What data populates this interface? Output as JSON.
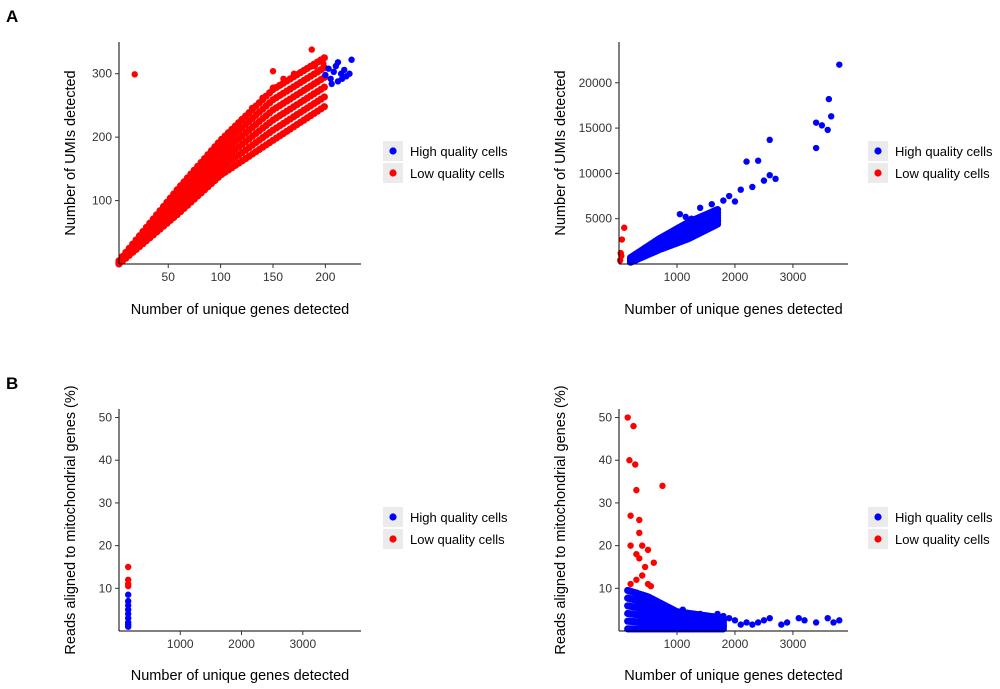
{
  "panel_labels": [
    "A",
    "B"
  ],
  "legend": {
    "items": [
      {
        "label": "High quality cells",
        "color": "#0000ff"
      },
      {
        "label": "Low quality cells",
        "color": "#ff0000"
      }
    ]
  },
  "chart_data": [
    {
      "panel": "A",
      "type": "scatter",
      "xlabel": "Number of unique genes detected",
      "ylabel": "Number of UMIs detected",
      "xlim": [
        3,
        234
      ],
      "ylim": [
        0,
        350
      ],
      "xticks": [
        50,
        100,
        150,
        200
      ],
      "yticks": [
        100,
        200,
        300
      ],
      "grid": false,
      "legend_position": "right",
      "series": [
        {
          "name": "High quality cells",
          "color": "#0000ff",
          "points": [
            [
              200,
              298
            ],
            [
              203,
              308
            ],
            [
              205,
              292
            ],
            [
              208,
              303
            ],
            [
              210,
              312
            ],
            [
              212,
              288
            ],
            [
              215,
              300
            ],
            [
              218,
              306
            ],
            [
              220,
              296
            ],
            [
              223,
              300
            ],
            [
              225,
              322
            ],
            [
              212,
              318
            ],
            [
              206,
              284
            ],
            [
              216,
              292
            ]
          ]
        },
        {
          "name": "Low quality cells",
          "color": "#ff0000",
          "points": [
            [
              18,
              299
            ],
            [
              187,
              338
            ],
            [
              150,
              304
            ],
            [
              5,
              5
            ],
            [
              10,
              12
            ],
            [
              20,
              28
            ],
            [
              30,
              45
            ],
            [
              40,
              65
            ],
            [
              50,
              86
            ],
            [
              60,
              108
            ],
            [
              70,
              128
            ],
            [
              80,
              150
            ],
            [
              90,
              172
            ],
            [
              100,
              190
            ],
            [
              110,
              210
            ],
            [
              120,
              228
            ],
            [
              130,
              246
            ],
            [
              140,
              262
            ],
            [
              150,
              278
            ],
            [
              160,
              292
            ],
            [
              170,
              300
            ],
            [
              180,
              306
            ],
            [
              190,
              312
            ],
            [
              198,
              316
            ]
          ]
        }
      ],
      "band": {
        "color": "#ff0000",
        "x": [
          3,
          199
        ],
        "y_low": [
          [
            3,
            0
          ],
          [
            60,
            80
          ],
          [
            100,
            140
          ],
          [
            150,
            195
          ],
          [
            199,
            248
          ]
        ],
        "y_high": [
          [
            3,
            5
          ],
          [
            60,
            120
          ],
          [
            100,
            195
          ],
          [
            150,
            275
          ],
          [
            199,
            325
          ]
        ]
      }
    },
    {
      "panel": "A",
      "type": "scatter",
      "xlabel": "Number of unique genes detected",
      "ylabel": "Number of UMIs detected",
      "xlim": [
        0,
        3950
      ],
      "ylim": [
        0,
        24500
      ],
      "xticks": [
        1000,
        2000,
        3000
      ],
      "yticks": [
        5000,
        10000,
        15000,
        20000
      ],
      "grid": false,
      "legend_position": "right",
      "series": [
        {
          "name": "High quality cells",
          "color": "#0000ff",
          "points": [
            [
              3800,
              22000
            ],
            [
              3620,
              18200
            ],
            [
              3400,
              15600
            ],
            [
              3500,
              15300
            ],
            [
              3600,
              14800
            ],
            [
              3660,
              16300
            ],
            [
              3400,
              12800
            ],
            [
              2600,
              13700
            ],
            [
              2200,
              11300
            ],
            [
              2400,
              11400
            ],
            [
              2600,
              9800
            ],
            [
              2500,
              9200
            ],
            [
              2700,
              9400
            ],
            [
              2300,
              8500
            ],
            [
              2100,
              8200
            ],
            [
              1800,
              7000
            ],
            [
              1600,
              6600
            ],
            [
              1400,
              6200
            ],
            [
              1900,
              7500
            ],
            [
              2000,
              6900
            ],
            [
              1700,
              5600
            ],
            [
              1500,
              5200
            ],
            [
              1300,
              4700
            ],
            [
              1200,
              4400
            ],
            [
              1100,
              3900
            ],
            [
              1000,
              3700
            ],
            [
              900,
              3100
            ],
            [
              800,
              2700
            ],
            [
              700,
              2300
            ],
            [
              600,
              1900
            ],
            [
              500,
              1600
            ],
            [
              400,
              1200
            ],
            [
              300,
              800
            ],
            [
              250,
              600
            ],
            [
              1050,
              5500
            ],
            [
              1150,
              5200
            ],
            [
              1250,
              5000
            ]
          ]
        },
        {
          "name": "Low quality cells",
          "color": "#ff0000",
          "points": [
            [
              90,
              4000
            ],
            [
              50,
              2700
            ],
            [
              30,
              1200
            ],
            [
              20,
              400
            ],
            [
              40,
              900
            ]
          ]
        }
      ],
      "band": {
        "color": "#0000ff",
        "x": [
          200,
          1700
        ],
        "y_low": [
          [
            200,
            200
          ],
          [
            700,
            1600
          ],
          [
            1200,
            2800
          ],
          [
            1700,
            4400
          ]
        ],
        "y_high": [
          [
            200,
            700
          ],
          [
            700,
            2800
          ],
          [
            1200,
            4600
          ],
          [
            1700,
            6000
          ]
        ]
      }
    },
    {
      "panel": "B",
      "type": "scatter",
      "xlabel": "Number of unique genes detected",
      "ylabel": "Reads aligned to mitochondrial genes (%)",
      "xlim": [
        0,
        3950
      ],
      "ylim": [
        0,
        52
      ],
      "xticks": [
        1000,
        2000,
        3000
      ],
      "yticks": [
        10,
        20,
        30,
        40,
        50
      ],
      "grid": false,
      "legend_position": "right",
      "series": [
        {
          "name": "High quality cells",
          "color": "#0000ff",
          "points": [
            [
              150,
              1.0
            ],
            [
              150,
              1.5
            ],
            [
              150,
              2.0
            ],
            [
              150,
              3.0
            ],
            [
              150,
              4.0
            ],
            [
              150,
              5.0
            ],
            [
              150,
              6.0
            ],
            [
              150,
              7.0
            ],
            [
              150,
              8.5
            ]
          ]
        },
        {
          "name": "Low quality cells",
          "color": "#ff0000",
          "points": [
            [
              150,
              15.0
            ],
            [
              150,
              12.0
            ],
            [
              150,
              11.0
            ],
            [
              150,
              10.5
            ]
          ]
        }
      ]
    },
    {
      "panel": "B",
      "type": "scatter",
      "xlabel": "Number of unique genes detected",
      "ylabel": "Reads aligned to mitochondrial genes (%)",
      "xlim": [
        0,
        3950
      ],
      "ylim": [
        0,
        52
      ],
      "xticks": [
        1000,
        2000,
        3000
      ],
      "yticks": [
        10,
        20,
        30,
        40,
        50
      ],
      "grid": false,
      "legend_position": "right",
      "series": [
        {
          "name": "High quality cells",
          "color": "#0000ff",
          "points": [
            [
              3800,
              2.5
            ],
            [
              3700,
              2.0
            ],
            [
              3600,
              3.0
            ],
            [
              3400,
              2.0
            ],
            [
              3200,
              2.5
            ],
            [
              3100,
              3.0
            ],
            [
              2900,
              2.0
            ],
            [
              2800,
              1.5
            ],
            [
              2600,
              3.0
            ],
            [
              2500,
              2.5
            ],
            [
              2400,
              2.0
            ],
            [
              2300,
              1.5
            ],
            [
              2200,
              2.0
            ],
            [
              2100,
              1.5
            ],
            [
              2000,
              2.5
            ],
            [
              1900,
              3.0
            ],
            [
              1800,
              3.5
            ],
            [
              1700,
              4.0
            ],
            [
              1600,
              2.0
            ],
            [
              1500,
              3.0
            ],
            [
              1400,
              4.0
            ],
            [
              1300,
              3.0
            ],
            [
              1200,
              2.0
            ],
            [
              1100,
              5.0
            ],
            [
              1000,
              3.0
            ],
            [
              900,
              4.0
            ],
            [
              800,
              5.5
            ],
            [
              700,
              6.0
            ],
            [
              600,
              7.0
            ],
            [
              500,
              8.0
            ],
            [
              400,
              8.5
            ],
            [
              300,
              9.0
            ],
            [
              250,
              7.5
            ]
          ]
        },
        {
          "name": "Low quality cells",
          "color": "#ff0000",
          "points": [
            [
              150,
              50.0
            ],
            [
              250,
              48.0
            ],
            [
              180,
              40.0
            ],
            [
              280,
              39.0
            ],
            [
              750,
              34.0
            ],
            [
              300,
              33.0
            ],
            [
              200,
              27.0
            ],
            [
              350,
              26.0
            ],
            [
              350,
              23.0
            ],
            [
              200,
              20.0
            ],
            [
              300,
              18.0
            ],
            [
              350,
              17.0
            ],
            [
              450,
              15.0
            ],
            [
              400,
              13.0
            ],
            [
              300,
              12.0
            ],
            [
              500,
              11.0
            ],
            [
              200,
              11.0
            ],
            [
              550,
              10.5
            ],
            [
              600,
              16.0
            ],
            [
              500,
              19.0
            ],
            [
              400,
              20.0
            ]
          ]
        }
      ],
      "band": {
        "color": "#0000ff",
        "x": [
          150,
          1800
        ],
        "y_low": [
          [
            150,
            0.5
          ],
          [
            1800,
            0.5
          ]
        ],
        "y_high": [
          [
            150,
            9.5
          ],
          [
            500,
            8.0
          ],
          [
            1000,
            4.5
          ],
          [
            1800,
            3.0
          ]
        ]
      }
    }
  ]
}
